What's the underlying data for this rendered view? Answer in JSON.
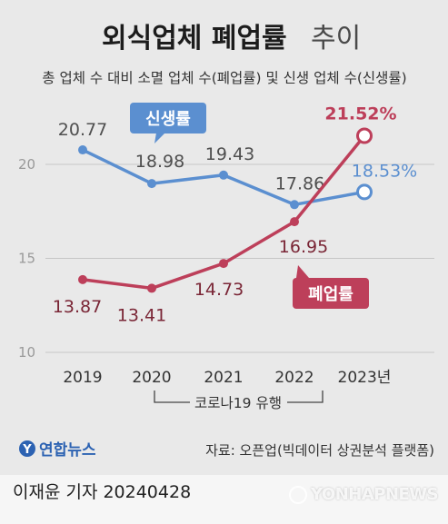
{
  "header": {
    "title_main": "외식업체 폐업률",
    "title_sub": "추이",
    "subtitle": "총 업체 수 대비 소멸 업체 수(폐업률) 및 신생 업체 수(신생률)"
  },
  "chart_data": {
    "type": "line",
    "categories": [
      "2019",
      "2020",
      "2021",
      "2022",
      "2023년"
    ],
    "ylim": [
      10,
      23
    ],
    "yticks": [
      10,
      15,
      20
    ],
    "grid": true,
    "series": [
      {
        "name": "신생률",
        "values": [
          20.77,
          18.98,
          19.43,
          17.86,
          18.53
        ],
        "labels": [
          "20.77",
          "18.98",
          "19.43",
          "17.86",
          "18.53%"
        ],
        "color": "#5b8fd0"
      },
      {
        "name": "폐업률",
        "values": [
          13.87,
          13.41,
          14.73,
          16.95,
          21.52
        ],
        "labels": [
          "13.87",
          "13.41",
          "14.73",
          "16.95",
          "21.52%"
        ],
        "color": "#bd3f5a"
      }
    ],
    "annotation": "코로나19 유행"
  },
  "source": {
    "logo": "연합뉴스",
    "text": "자료: 오픈업(빅데이터 상권분석 플랫폼)"
  },
  "footer": {
    "reporter": "이재윤 기자",
    "date": "20240428",
    "watermark": "YONHAPNEWS"
  },
  "colors": {
    "background": "#e9e9e9",
    "new_rate": "#5b8fd0",
    "close_rate": "#bd3f5a",
    "close_label_text": "#7a2636"
  }
}
